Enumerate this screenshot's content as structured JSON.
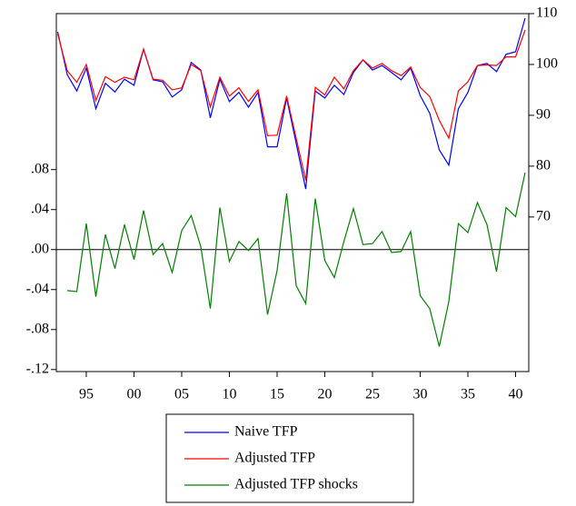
{
  "chart_data": {
    "type": "line",
    "x": [
      1992,
      1993,
      1994,
      1995,
      1996,
      1997,
      1998,
      1999,
      2000,
      2001,
      2002,
      2003,
      2004,
      2005,
      2006,
      2007,
      2008,
      2009,
      2010,
      2011,
      2012,
      2013,
      2014,
      2015,
      2016,
      2017,
      2018,
      2019,
      2020,
      2021,
      2022,
      2023,
      2024,
      2025,
      2026,
      2027,
      2028,
      2029,
      2030,
      2031,
      2032,
      2033,
      2034,
      2035,
      2036,
      2037,
      2038,
      2039,
      2040,
      2041
    ],
    "xlim": [
      1991.86,
      2041.38
    ],
    "xticks": [
      {
        "value": 1995,
        "label": "95"
      },
      {
        "value": 2000,
        "label": "00"
      },
      {
        "value": 2005,
        "label": "05"
      },
      {
        "value": 2010,
        "label": "10"
      },
      {
        "value": 2015,
        "label": "15"
      },
      {
        "value": 2020,
        "label": "20"
      },
      {
        "value": 2025,
        "label": "25"
      },
      {
        "value": 2030,
        "label": "30"
      },
      {
        "value": 2035,
        "label": "35"
      },
      {
        "value": 2040,
        "label": "40"
      }
    ],
    "ylim": [
      -0.122,
      0.236
    ],
    "yticks": [
      {
        "value": -0.12,
        "label": "-.12"
      },
      {
        "value": -0.08,
        "label": "-.08"
      },
      {
        "value": -0.04,
        "label": "-.04"
      },
      {
        "value": 0,
        "label": ".00"
      },
      {
        "value": 0.04,
        "label": ".04"
      },
      {
        "value": 0.08,
        "label": ".08"
      }
    ],
    "y2lim": [
      39.6,
      110
    ],
    "y2ticks": [
      70,
      80,
      90,
      100,
      110
    ],
    "zero_line": true,
    "series": [
      {
        "name": "Naive TFP",
        "color": "#0000ff",
        "axis": "y2",
        "values": [
          106.4,
          98.0,
          94.8,
          99.3,
          91.3,
          96.3,
          94.6,
          97.1,
          95.9,
          103.0,
          97.0,
          96.6,
          93.6,
          95.0,
          100.4,
          98.9,
          89.5,
          97.1,
          92.7,
          94.5,
          91.6,
          94.5,
          83.8,
          83.8,
          93.4,
          84.5,
          75.5,
          94.8,
          93.4,
          95.9,
          94.1,
          98.4,
          100.9,
          98.9,
          99.8,
          98.4,
          97.0,
          99.3,
          93.9,
          90.4,
          83.2,
          80.2,
          91.3,
          94.5,
          99.8,
          100.2,
          98.6,
          102.0,
          102.5,
          109.1
        ]
      },
      {
        "name": "Adjusted TFP",
        "color": "#ff0000",
        "axis": "y2",
        "values": [
          106.0,
          98.8,
          96.5,
          100.0,
          92.9,
          97.6,
          96.5,
          97.5,
          97.0,
          103.0,
          97.1,
          96.9,
          95.0,
          95.4,
          100.0,
          98.8,
          91.6,
          97.5,
          93.8,
          95.4,
          92.7,
          95.0,
          86.0,
          86.1,
          93.8,
          85.5,
          77.2,
          95.5,
          94.0,
          97.5,
          95.2,
          98.8,
          100.9,
          99.3,
          100.2,
          98.8,
          97.8,
          99.5,
          95.5,
          93.7,
          89.0,
          85.5,
          94.8,
          96.6,
          99.8,
          99.9,
          99.8,
          101.5,
          101.5,
          106.8
        ]
      },
      {
        "name": "Adjusted TFP shocks",
        "color": "#008000",
        "axis": "y",
        "values": [
          null,
          -0.041,
          -0.042,
          0.026,
          -0.047,
          0.015,
          -0.019,
          0.025,
          -0.01,
          0.039,
          -0.005,
          0.006,
          -0.023,
          0.019,
          0.034,
          0.003,
          -0.059,
          0.042,
          -0.012,
          0.008,
          -0.001,
          0.011,
          -0.065,
          -0.021,
          0.056,
          -0.036,
          -0.054,
          0.051,
          -0.011,
          -0.028,
          0.008,
          0.041,
          0.005,
          0.006,
          0.018,
          -0.003,
          -0.002,
          0.018,
          -0.046,
          -0.059,
          -0.097,
          -0.052,
          0.026,
          0.017,
          0.047,
          0.025,
          -0.022,
          0.042,
          0.033,
          0.077
        ]
      }
    ]
  }
}
